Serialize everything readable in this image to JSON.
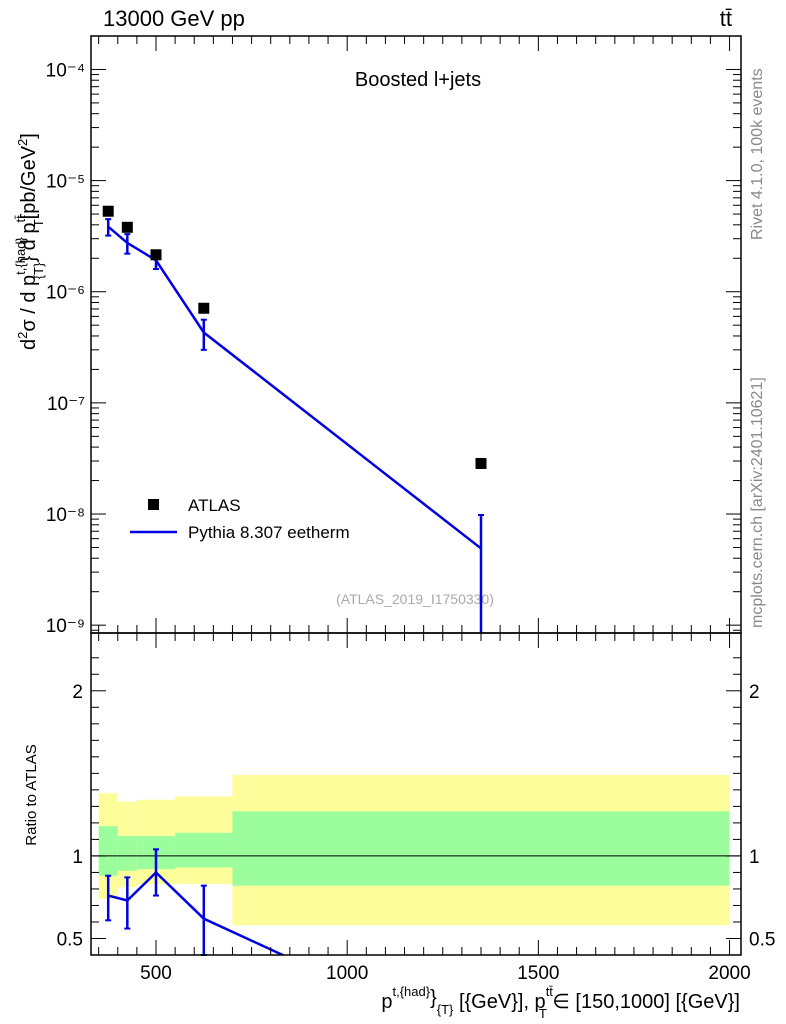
{
  "header": {
    "left": "13000 GeV pp",
    "right": "tt̄"
  },
  "side_labels": {
    "rivet": "Rivet 4.1.0,  100k events",
    "mcplots": "mcplots.cern.ch [arXiv:2401.10621]"
  },
  "chart_data": [
    {
      "type": "scatter",
      "title": "Boosted l+jets",
      "watermark": "(ATLAS_2019_I1750330)",
      "yscale": "log",
      "ylim": [
        8.5e-10,
        0.0002
      ],
      "xlim": [
        330,
        2030
      ],
      "ylabel": "d²σ / d p^{t,{had}}_{T} d p^{tt̄}_T [pb/GeV²]",
      "ytick_labels": [
        "10⁻⁹",
        "10⁻⁸",
        "10⁻⁷",
        "10⁻⁶",
        "10⁻⁵",
        "10⁻⁴"
      ],
      "ytick_values": [
        1e-09,
        1e-08,
        1e-07,
        1e-06,
        1e-05,
        0.0001
      ],
      "legend": {
        "position": "lower-left",
        "data_label": "ATLAS",
        "mc_label": "Pythia 8.307 eetherm"
      },
      "series": [
        {
          "name": "ATLAS",
          "marker": "square",
          "color": "#000000",
          "x": [
            375,
            425,
            500,
            625,
            1350
          ],
          "y": [
            5.3e-06,
            3.8e-06,
            2.15e-06,
            7.1e-07,
            2.85e-08
          ]
        },
        {
          "name": "Pythia 8.307 eetherm",
          "marker": "line",
          "color": "#0000e0",
          "x": [
            375,
            425,
            500,
            625,
            1350
          ],
          "y": [
            3.85e-06,
            2.75e-06,
            1.92e-06,
            4.3e-07,
            4.9e-09
          ],
          "err_low": [
            3.2e-06,
            2.2e-06,
            1.6e-06,
            3e-07,
            5e-10
          ],
          "err_high": [
            4.5e-06,
            3.3e-06,
            2.2e-06,
            5.6e-07,
            9.8e-09
          ]
        }
      ]
    },
    {
      "type": "line",
      "ylabel": "Ratio to ATLAS",
      "xlabel": "p^{t,{had}}_{T} [{GeV}], p^{tt̄}_T ∈ [150,1000] [{GeV}]",
      "xlabel_parts": {
        "p": "p",
        "sup1": "t,{had}",
        "sub1": "{T}",
        "mid": " [{GeV}], p",
        "sup2": "tt̄",
        "sub2": "T",
        "end": " ∈ [150,1000] [{GeV}]"
      },
      "xlim": [
        330,
        2030
      ],
      "ylim": [
        0.4,
        2.35
      ],
      "xtick_labels": [
        "500",
        "1000",
        "1500",
        "2000"
      ],
      "xtick_values": [
        500,
        1000,
        1500,
        2000
      ],
      "ytick_labels": [
        "0.5",
        "1",
        "2"
      ],
      "ytick_values": [
        0.5,
        1,
        2
      ],
      "bands": [
        {
          "x0": 350,
          "x1": 400,
          "yellow": [
            0.74,
            1.38
          ],
          "green": [
            0.88,
            1.18
          ]
        },
        {
          "x0": 400,
          "x1": 450,
          "yellow": [
            0.81,
            1.33
          ],
          "green": [
            0.91,
            1.12
          ]
        },
        {
          "x0": 450,
          "x1": 550,
          "yellow": [
            0.83,
            1.34
          ],
          "green": [
            0.92,
            1.12
          ]
        },
        {
          "x0": 550,
          "x1": 700,
          "yellow": [
            0.83,
            1.36
          ],
          "green": [
            0.93,
            1.14
          ]
        },
        {
          "x0": 700,
          "x1": 2000,
          "yellow": [
            0.58,
            1.49
          ],
          "green": [
            0.82,
            1.27
          ]
        }
      ],
      "band_colors": {
        "yellow": "#fdfd9b",
        "green": "#9bfd9b"
      },
      "series": [
        {
          "name": "Pythia 8.307 eetherm / ATLAS",
          "color": "#0000e0",
          "x": [
            375,
            425,
            500,
            625,
            850
          ],
          "y": [
            0.76,
            0.73,
            0.9,
            0.62,
            0.38
          ],
          "err_low": [
            0.61,
            0.56,
            0.76,
            0.4,
            null
          ],
          "err_high": [
            0.88,
            0.87,
            1.04,
            0.82,
            null
          ]
        }
      ]
    }
  ]
}
